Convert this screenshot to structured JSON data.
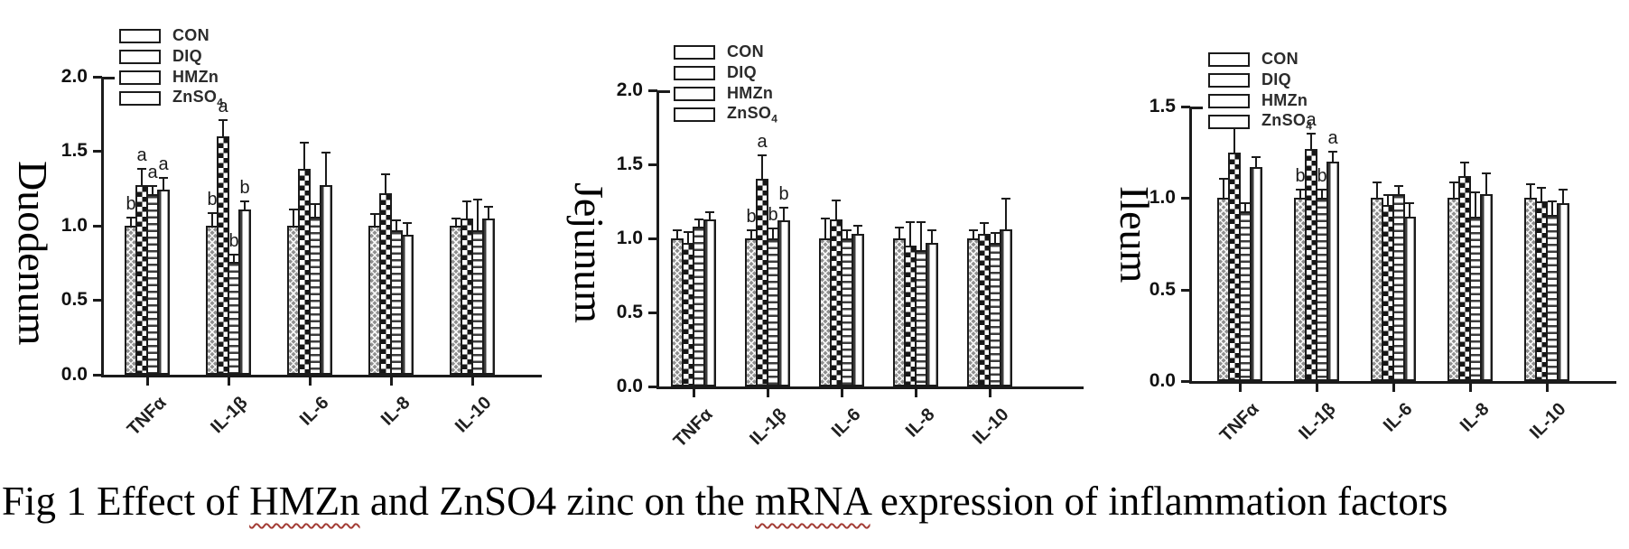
{
  "figure_caption": {
    "segments": [
      {
        "text": "Fig 1 Effect of ",
        "spellcheck_underline": false
      },
      {
        "text": "HMZn",
        "spellcheck_underline": true
      },
      {
        "text": " and ZnSO4 zinc on the ",
        "spellcheck_underline": false
      },
      {
        "text": "mRNA",
        "spellcheck_underline": true
      },
      {
        "text": " expression of inflammation factors",
        "spellcheck_underline": false
      }
    ],
    "underline_color": "#a33d36",
    "text_color": "#000000"
  },
  "legend": {
    "position": "top-left-inside",
    "items": [
      {
        "label": "CON",
        "pattern": "crosshatch-gray"
      },
      {
        "label": "DIQ",
        "pattern": "checkerboard"
      },
      {
        "label": "HMZn",
        "pattern": "horizontal-stripes"
      },
      {
        "label": "ZnSO4",
        "subscript_last": true,
        "pattern": "vertical-stripes"
      }
    ]
  },
  "chart_data": [
    {
      "type": "bar",
      "panel_label": "Duodenum",
      "categories": [
        "TNFα",
        "IL-1β",
        "IL-6",
        "IL-8",
        "IL-10"
      ],
      "ylim": [
        0,
        2.0
      ],
      "yticks": [
        "0.0",
        "0.5",
        "1.0",
        "1.5",
        "2.0"
      ],
      "grid": false,
      "error_bars": "upper",
      "series": [
        {
          "name": "CON",
          "values": [
            1.0,
            1.0,
            1.0,
            1.0,
            1.0
          ],
          "errors": [
            0.05,
            0.08,
            0.1,
            0.07,
            0.04
          ],
          "letters": [
            "b",
            "b",
            "",
            "",
            ""
          ]
        },
        {
          "name": "DIQ",
          "values": [
            1.27,
            1.6,
            1.38,
            1.22,
            1.05
          ],
          "errors": [
            0.1,
            0.1,
            0.17,
            0.12,
            0.11
          ],
          "letters": [
            "a",
            "a",
            "",
            "",
            ""
          ]
        },
        {
          "name": "HMZn",
          "values": [
            1.21,
            0.76,
            1.06,
            0.97,
            0.97
          ],
          "errors": [
            0.05,
            0.04,
            0.08,
            0.06,
            0.2
          ],
          "letters": [
            "a",
            "b",
            "",
            "",
            ""
          ]
        },
        {
          "name": "ZnSO4",
          "values": [
            1.24,
            1.11,
            1.27,
            0.94,
            1.05
          ],
          "errors": [
            0.07,
            0.05,
            0.21,
            0.07,
            0.07
          ],
          "letters": [
            "a",
            "b",
            "",
            "",
            ""
          ]
        }
      ]
    },
    {
      "type": "bar",
      "panel_label": "Jejunum",
      "categories": [
        "TNFα",
        "IL-1β",
        "IL-6",
        "IL-8",
        "IL-10"
      ],
      "ylim": [
        0,
        2.0
      ],
      "yticks": [
        "0.0",
        "0.5",
        "1.0",
        "1.5",
        "2.0"
      ],
      "grid": false,
      "error_bars": "upper",
      "series": [
        {
          "name": "CON",
          "values": [
            1.0,
            1.0,
            1.0,
            1.0,
            1.0
          ],
          "errors": [
            0.05,
            0.05,
            0.13,
            0.07,
            0.05
          ],
          "letters": [
            "",
            "b",
            "",
            "",
            ""
          ]
        },
        {
          "name": "DIQ",
          "values": [
            0.97,
            1.4,
            1.13,
            0.95,
            1.03
          ],
          "errors": [
            0.07,
            0.15,
            0.12,
            0.15,
            0.07
          ],
          "letters": [
            "",
            "a",
            "",
            "",
            ""
          ]
        },
        {
          "name": "HMZn",
          "values": [
            1.08,
            1.0,
            1.0,
            0.92,
            0.97
          ],
          "errors": [
            0.04,
            0.06,
            0.05,
            0.18,
            0.06
          ],
          "letters": [
            "",
            "b",
            "",
            "",
            ""
          ]
        },
        {
          "name": "ZnSO4",
          "values": [
            1.13,
            1.12,
            1.03,
            0.97,
            1.06
          ],
          "errors": [
            0.04,
            0.08,
            0.05,
            0.08,
            0.2
          ],
          "letters": [
            "",
            "b",
            "",
            "",
            ""
          ]
        }
      ]
    },
    {
      "type": "bar",
      "panel_label": "Ileum",
      "categories": [
        "TNFα",
        "IL-1β",
        "IL-6",
        "IL-8",
        "IL-10"
      ],
      "ylim": [
        0,
        1.5
      ],
      "yticks": [
        "0.0",
        "0.5",
        "1.0",
        "1.5"
      ],
      "grid": false,
      "error_bars": "upper",
      "series": [
        {
          "name": "CON",
          "values": [
            1.0,
            1.0,
            1.0,
            1.0,
            1.0
          ],
          "errors": [
            0.1,
            0.04,
            0.08,
            0.08,
            0.07
          ],
          "letters": [
            "",
            "b",
            "",
            "",
            ""
          ]
        },
        {
          "name": "DIQ",
          "values": [
            1.25,
            1.27,
            0.96,
            1.12,
            0.98
          ],
          "errors": [
            0.13,
            0.08,
            0.05,
            0.07,
            0.07
          ],
          "letters": [
            "",
            "a",
            "",
            "",
            ""
          ]
        },
        {
          "name": "HMZn",
          "values": [
            0.93,
            1.0,
            1.02,
            0.9,
            0.91
          ],
          "errors": [
            0.04,
            0.04,
            0.04,
            0.13,
            0.07
          ],
          "letters": [
            "",
            "b",
            "",
            "",
            ""
          ]
        },
        {
          "name": "ZnSO4",
          "values": [
            1.17,
            1.2,
            0.9,
            1.02,
            0.97
          ],
          "errors": [
            0.05,
            0.05,
            0.07,
            0.11,
            0.07
          ],
          "letters": [
            "",
            "a",
            "",
            "",
            ""
          ]
        }
      ]
    }
  ]
}
